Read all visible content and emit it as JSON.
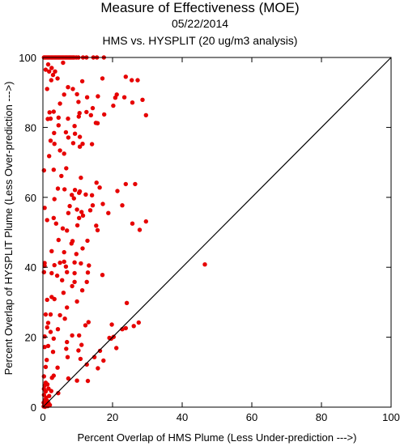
{
  "chart_data": {
    "type": "scatter",
    "title": "Measure of Effectiveness (MOE)",
    "subtitle": "05/22/2014",
    "subtitle2": "HMS vs. HYSPLIT  (20 ug/m3 analysis)",
    "xlabel": "Percent Overlap of HMS Plume (Less Under-prediction --->)",
    "ylabel": "Percent Overlap of HYSPLIT Plume (Less Over-prediction --->)",
    "xlim": [
      0,
      100
    ],
    "ylim": [
      0,
      100
    ],
    "xticks": [
      "0",
      "20",
      "40",
      "60",
      "80",
      "100"
    ],
    "yticks": [
      "0",
      "20",
      "40",
      "60",
      "80",
      "100"
    ],
    "grid": false,
    "legend": "none",
    "point_color": "#e60000",
    "reference_line": [
      [
        0,
        0
      ],
      [
        100,
        100
      ]
    ],
    "points": [
      [
        0.3,
        100
      ],
      [
        0.6,
        100
      ],
      [
        0.9,
        100
      ],
      [
        1.2,
        100
      ],
      [
        1.5,
        100
      ],
      [
        1.8,
        100
      ],
      [
        2.1,
        100
      ],
      [
        2.4,
        100
      ],
      [
        2.7,
        100
      ],
      [
        3.0,
        100
      ],
      [
        3.3,
        100
      ],
      [
        3.6,
        100
      ],
      [
        3.9,
        100
      ],
      [
        4.2,
        100
      ],
      [
        4.5,
        100
      ],
      [
        4.8,
        100
      ],
      [
        5.1,
        100
      ],
      [
        5.4,
        100
      ],
      [
        5.7,
        100
      ],
      [
        6.0,
        100
      ],
      [
        6.3,
        100
      ],
      [
        6.6,
        100
      ],
      [
        6.9,
        100
      ],
      [
        7.2,
        100
      ],
      [
        7.5,
        100
      ],
      [
        7.8,
        100
      ],
      [
        8.1,
        100
      ],
      [
        8.4,
        100
      ],
      [
        8.7,
        100
      ],
      [
        9.0,
        100
      ],
      [
        9.6,
        100
      ],
      [
        10.2,
        100
      ],
      [
        11.5,
        100
      ],
      [
        12.5,
        100
      ],
      [
        14.5,
        100
      ],
      [
        15.5,
        100
      ],
      [
        17.5,
        100
      ],
      [
        1.5,
        98
      ],
      [
        2.5,
        97
      ],
      [
        0.8,
        96.5
      ],
      [
        1.8,
        96
      ],
      [
        3.5,
        96
      ],
      [
        2.9,
        95
      ],
      [
        5.8,
        98.5
      ],
      [
        1.2,
        91
      ],
      [
        2.4,
        93.5
      ],
      [
        4.2,
        94
      ],
      [
        7.2,
        91.5
      ],
      [
        8.6,
        91
      ],
      [
        11.3,
        93.2
      ],
      [
        17.1,
        94
      ],
      [
        25.5,
        93.5
      ],
      [
        23.8,
        94.5
      ],
      [
        27.2,
        93.5
      ],
      [
        6.1,
        89.4
      ],
      [
        9.8,
        89.5
      ],
      [
        4.9,
        86.8
      ],
      [
        10.2,
        87.3
      ],
      [
        12.7,
        88.6
      ],
      [
        15.8,
        88.9
      ],
      [
        21.2,
        89.4
      ],
      [
        20.8,
        88.5
      ],
      [
        23.4,
        88.6
      ],
      [
        25.7,
        87.1
      ],
      [
        28.6,
        87.9
      ],
      [
        20.2,
        86.2
      ],
      [
        14.3,
        85.5
      ],
      [
        12.5,
        84.4
      ],
      [
        10.5,
        84.1
      ],
      [
        1.9,
        84.3
      ],
      [
        3.1,
        84.5
      ],
      [
        1.4,
        82.4
      ],
      [
        2.2,
        82.5
      ],
      [
        4.5,
        82.8
      ],
      [
        7.2,
        82.5
      ],
      [
        10.3,
        83.1
      ],
      [
        13.8,
        83.5
      ],
      [
        17.6,
        83.7
      ],
      [
        29.6,
        83.5
      ],
      [
        15.2,
        81.3
      ],
      [
        15.7,
        81.2
      ],
      [
        9.1,
        80.4
      ],
      [
        4.5,
        80.6
      ],
      [
        3.2,
        78.4
      ],
      [
        6.6,
        78.6
      ],
      [
        7.3,
        77.1
      ],
      [
        9.2,
        78.2
      ],
      [
        10.6,
        77.3
      ],
      [
        2.2,
        76.2
      ],
      [
        3.3,
        75.3
      ],
      [
        8.7,
        75.5
      ],
      [
        11.4,
        75.3
      ],
      [
        10.6,
        74.5
      ],
      [
        14.1,
        75.2
      ],
      [
        4.9,
        73.4
      ],
      [
        6.1,
        72.5
      ],
      [
        1.8,
        71.8
      ],
      [
        0.3,
        67.7
      ],
      [
        3.1,
        67.9
      ],
      [
        6.7,
        68.3
      ],
      [
        5.3,
        66.1
      ],
      [
        10.9,
        65.6
      ],
      [
        15.4,
        64.2
      ],
      [
        16.3,
        62.8
      ],
      [
        23.8,
        63.8
      ],
      [
        26.5,
        63.8
      ],
      [
        4.3,
        62.5
      ],
      [
        6.2,
        62.3
      ],
      [
        9.2,
        62.1
      ],
      [
        10.6,
        61.7
      ],
      [
        21.4,
        61.8
      ],
      [
        10.4,
        61.3
      ],
      [
        8.3,
        60.7
      ],
      [
        12.3,
        60.8
      ],
      [
        14.1,
        60.6
      ],
      [
        8.9,
        59.7
      ],
      [
        3.3,
        59.5
      ],
      [
        17.2,
        58.1
      ],
      [
        7.7,
        57.5
      ],
      [
        14.3,
        57.7
      ],
      [
        22.8,
        57.7
      ],
      [
        0.5,
        57.0
      ],
      [
        9.8,
        56.5
      ],
      [
        13.6,
        56.3
      ],
      [
        11.1,
        55.8
      ],
      [
        7.3,
        55.5
      ],
      [
        3.1,
        54.1
      ],
      [
        11.5,
        54.8
      ],
      [
        1.2,
        53.5
      ],
      [
        10.4,
        54.1
      ],
      [
        18.8,
        55.5
      ],
      [
        29.6,
        53.1
      ],
      [
        3.8,
        52.5
      ],
      [
        25.7,
        52.5
      ],
      [
        9.9,
        52.0
      ],
      [
        15.3,
        51.9
      ],
      [
        5.7,
        51.1
      ],
      [
        6.9,
        50.5
      ],
      [
        15.7,
        50.6
      ],
      [
        27.8,
        50.7
      ],
      [
        4.5,
        47.8
      ],
      [
        8.5,
        47.5
      ],
      [
        12.8,
        47.6
      ],
      [
        11.4,
        45.4
      ],
      [
        8.2,
        46.8
      ],
      [
        2.5,
        44.6
      ],
      [
        6.1,
        44.3
      ],
      [
        9.6,
        43.8
      ],
      [
        0.5,
        41.2
      ],
      [
        3.3,
        40.6
      ],
      [
        4.9,
        41.3
      ],
      [
        6.1,
        41.6
      ],
      [
        9.1,
        41.4
      ],
      [
        10.9,
        41.1
      ],
      [
        13.2,
        40.5
      ],
      [
        0.5,
        40.4
      ],
      [
        6.6,
        40.2
      ],
      [
        0.3,
        38.6
      ],
      [
        2.5,
        38.3
      ],
      [
        6.9,
        38.6
      ],
      [
        9.1,
        38.3
      ],
      [
        12.9,
        38.5
      ],
      [
        17.1,
        37.8
      ],
      [
        4.1,
        37.6
      ],
      [
        5.5,
        36.3
      ],
      [
        9.1,
        35.8
      ],
      [
        12.6,
        35.8
      ],
      [
        8.4,
        34.6
      ],
      [
        5.9,
        32.7
      ],
      [
        11.3,
        33.4
      ],
      [
        2.5,
        31.5
      ],
      [
        1.2,
        30.7
      ],
      [
        3.3,
        30.9
      ],
      [
        9.8,
        30.2
      ],
      [
        24.1,
        29.8
      ],
      [
        6.9,
        28.5
      ],
      [
        2.2,
        26.5
      ],
      [
        4.9,
        26.3
      ],
      [
        0.8,
        26.5
      ],
      [
        6.3,
        25.3
      ],
      [
        1.5,
        24.1
      ],
      [
        13.1,
        24.3
      ],
      [
        12.2,
        23.4
      ],
      [
        19.8,
        23.6
      ],
      [
        27.5,
        24.2
      ],
      [
        22.8,
        22.3
      ],
      [
        23.8,
        22.6
      ],
      [
        26.1,
        23.2
      ],
      [
        4.3,
        22.3
      ],
      [
        1.2,
        22.8
      ],
      [
        2.2,
        21.5
      ],
      [
        8.4,
        20.5
      ],
      [
        10.4,
        20.5
      ],
      [
        20.3,
        20.1
      ],
      [
        19.1,
        19.8
      ],
      [
        19.6,
        19.6
      ],
      [
        0.5,
        20.2
      ],
      [
        3.1,
        19.6
      ],
      [
        6.9,
        18.6
      ],
      [
        11.1,
        17.8
      ],
      [
        1.5,
        17.5
      ],
      [
        0.5,
        17.2
      ],
      [
        21.1,
        16.9
      ],
      [
        6.7,
        16.7
      ],
      [
        10.2,
        16.2
      ],
      [
        2.9,
        15.8
      ],
      [
        16.4,
        16.1
      ],
      [
        7.1,
        14.3
      ],
      [
        10.8,
        13.8
      ],
      [
        14.8,
        14.3
      ],
      [
        17.4,
        13.3
      ],
      [
        1.1,
        13.5
      ],
      [
        0.8,
        11.5
      ],
      [
        4.2,
        11.3
      ],
      [
        12.6,
        12.2
      ],
      [
        15.8,
        11.1
      ],
      [
        0.3,
        8.8
      ],
      [
        2.6,
        8.4
      ],
      [
        3.1,
        9.0
      ],
      [
        7.3,
        8.2
      ],
      [
        9.8,
        7.6
      ],
      [
        12.9,
        7.5
      ],
      [
        0.8,
        7.0
      ],
      [
        1.3,
        6.5
      ],
      [
        0.5,
        6.2
      ],
      [
        0.3,
        5.2
      ],
      [
        1.6,
        5.3
      ],
      [
        0.8,
        4.5
      ],
      [
        2.4,
        4.6
      ],
      [
        0.3,
        3.5
      ],
      [
        0.9,
        2.7
      ],
      [
        1.8,
        3.2
      ],
      [
        0.5,
        2.0
      ],
      [
        1.2,
        1.8
      ],
      [
        0.2,
        1.3
      ],
      [
        0.8,
        1.0
      ],
      [
        1.6,
        1.2
      ],
      [
        0.4,
        0.5
      ],
      [
        1.0,
        0.4
      ],
      [
        0.2,
        0.2
      ],
      [
        0.6,
        0.1
      ],
      [
        1.4,
        0.3
      ],
      [
        2.0,
        0.6
      ],
      [
        4.4,
        4.0
      ],
      [
        46.5,
        40.8
      ]
    ]
  }
}
